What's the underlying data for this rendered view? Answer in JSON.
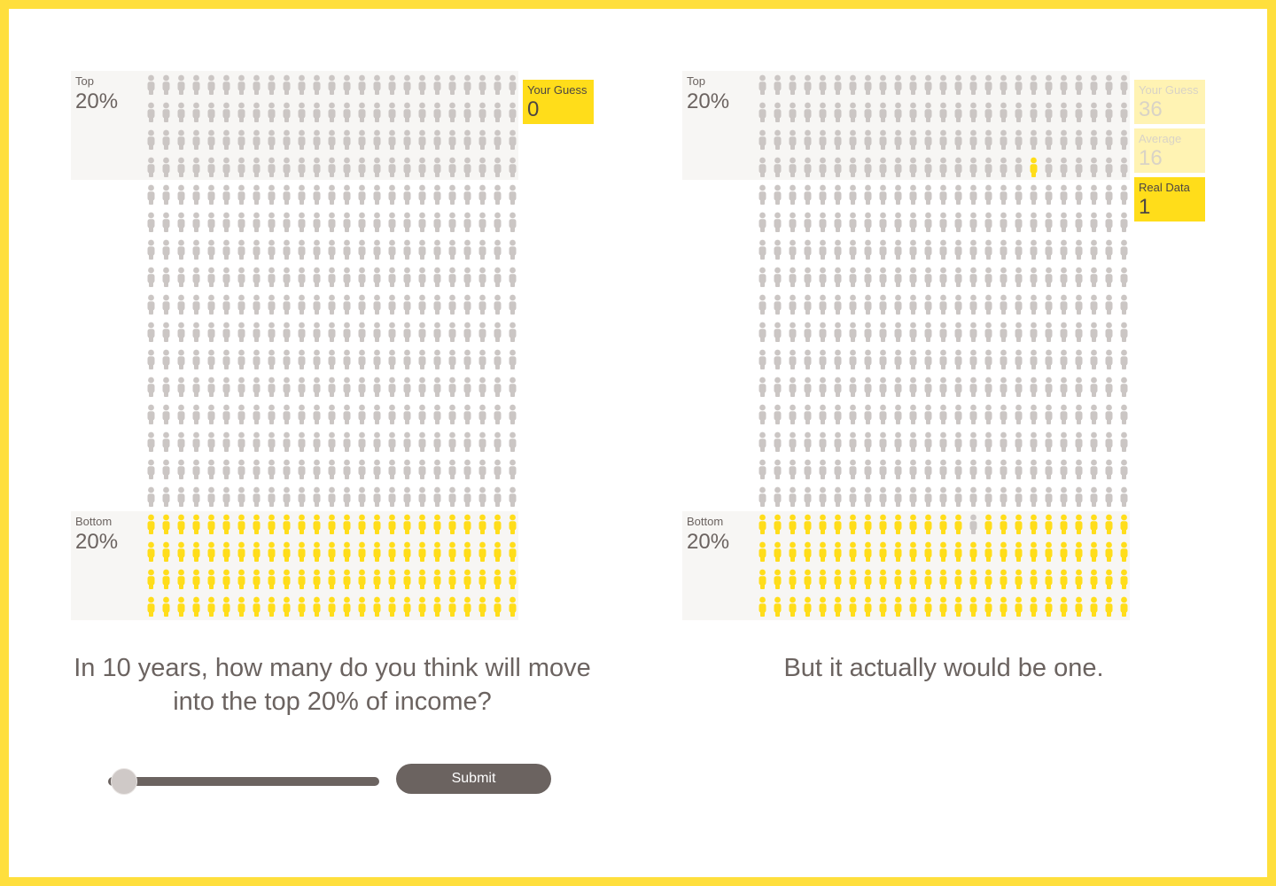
{
  "colors": {
    "accent": "#ffdd1a",
    "accent_faded": "#fff3b3",
    "person_default": "#cbc6c4",
    "band_bg": "#f7f6f4",
    "text": "#6b6360"
  },
  "icons": {
    "person": "person-icon"
  },
  "left_panel": {
    "top_band": {
      "label": "Top",
      "percent": "20%"
    },
    "bottom_band": {
      "label": "Bottom",
      "percent": "20%"
    },
    "guess": {
      "label": "Your Guess",
      "value": "0"
    },
    "question": "In 10 years, how many do you think will move into the top 20% of income?",
    "slider": {
      "value": 0,
      "min": 0,
      "max": 100
    },
    "submit_label": "Submit"
  },
  "right_panel": {
    "top_band": {
      "label": "Top",
      "percent": "20%"
    },
    "bottom_band": {
      "label": "Bottom",
      "percent": "20%"
    },
    "your_guess": {
      "label": "Your Guess",
      "value": "36"
    },
    "average": {
      "label": "Average",
      "value": "16"
    },
    "real_data": {
      "label": "Real Data",
      "value": "1"
    },
    "answer": "But it actually would be one."
  },
  "people_grid": {
    "columns": 25,
    "rows": 20,
    "bottom_band_rows": 4,
    "moved_up": 1
  }
}
